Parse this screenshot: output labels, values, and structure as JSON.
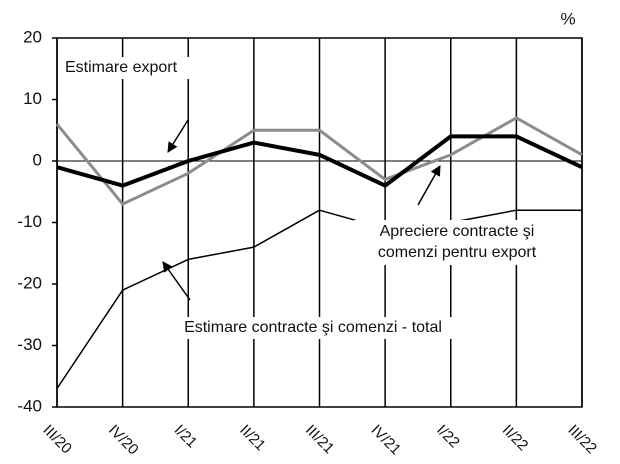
{
  "chart_data": {
    "type": "line",
    "unit": "%",
    "categories": [
      "III/20",
      "IV/20",
      "I/21",
      "II/21",
      "III/21",
      "IV/21",
      "I/22",
      "II/22",
      "III/22"
    ],
    "series": [
      {
        "color": "#000000",
        "width": 4,
        "values": [
          -1,
          -4,
          0,
          3,
          1,
          -4,
          4,
          4,
          -1
        ]
      },
      {
        "color": "#8c8c8c",
        "width": 3,
        "values": [
          6,
          -7,
          -2,
          5,
          5,
          -3,
          1,
          7,
          1
        ]
      },
      {
        "color": "#000000",
        "width": 1.5,
        "values": [
          -37,
          -21,
          -16,
          -14,
          -8,
          -11,
          -10,
          -8,
          -8
        ]
      }
    ],
    "annotations": [
      {
        "lines": [
          "Estimare export"
        ]
      },
      {
        "lines": [
          "Apreciere contracte şi",
          "comenzi pentru export"
        ]
      },
      {
        "lines": [
          "Estimare contracte şi comenzi - total"
        ]
      }
    ],
    "ylim": [
      -40,
      20
    ],
    "yticks": [
      -40,
      -30,
      -20,
      -10,
      0,
      10,
      20
    ]
  }
}
